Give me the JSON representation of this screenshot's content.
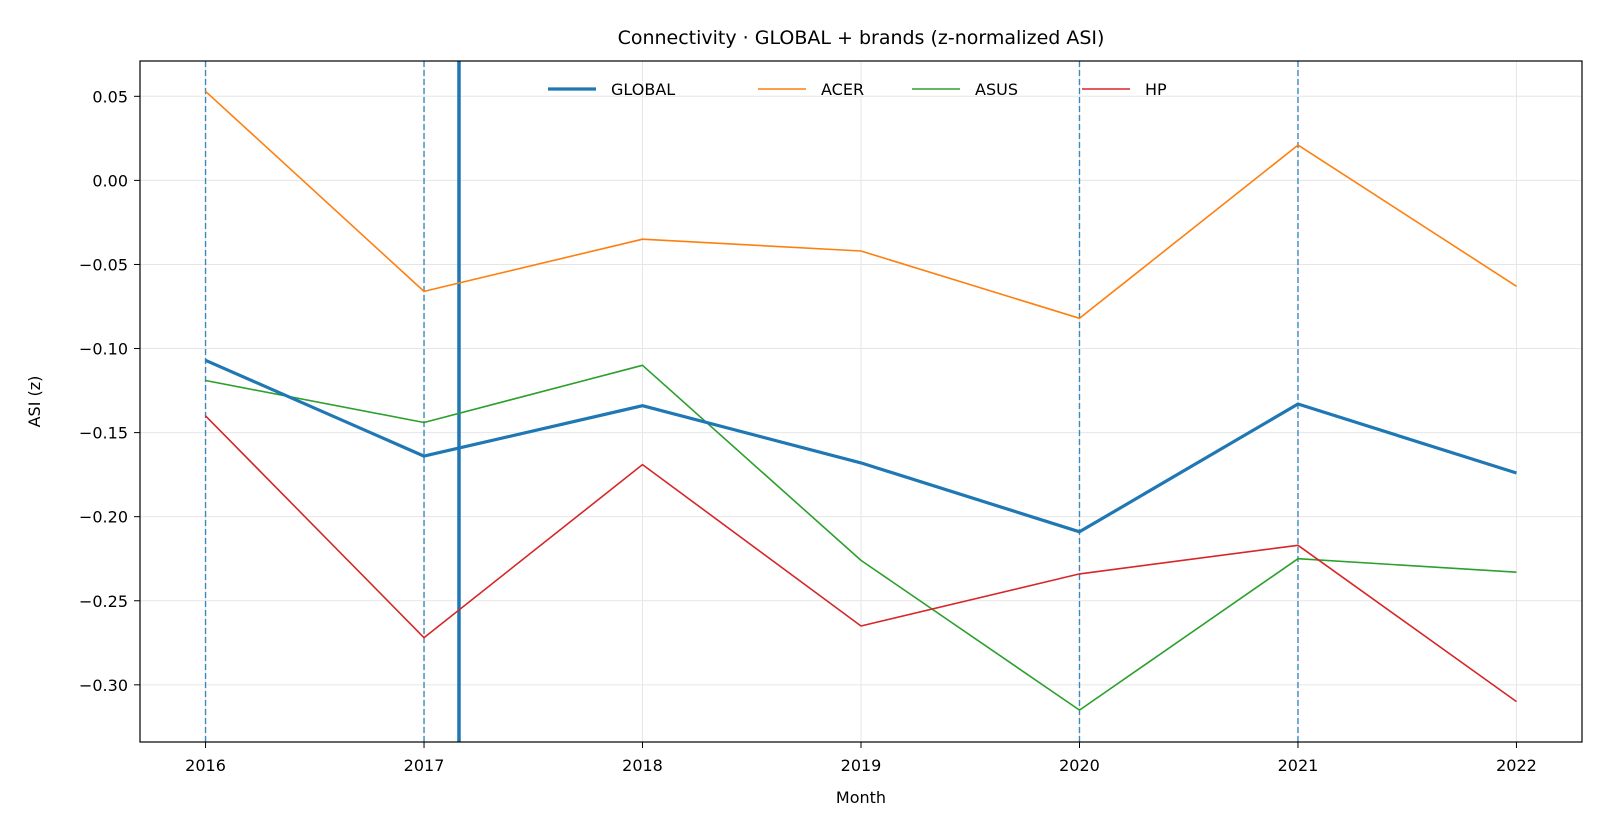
{
  "chart_data": {
    "type": "line",
    "title": "Connectivity · GLOBAL + brands (z-normalized ASI)",
    "xlabel": "Month",
    "ylabel": "ASI (z)",
    "x": [
      2016,
      2017,
      2018,
      2019,
      2020,
      2021,
      2022
    ],
    "x_tick_labels": [
      "2016",
      "2017",
      "2018",
      "2019",
      "2020",
      "2021",
      "2022"
    ],
    "xlim": [
      2015.7,
      2022.3
    ],
    "ylim": [
      -0.334,
      0.071
    ],
    "y_ticks": [
      0.05,
      0.0,
      -0.05,
      -0.1,
      -0.15,
      -0.2,
      -0.25,
      -0.3
    ],
    "y_tick_labels": [
      "0.05",
      "0.00",
      "−0.05",
      "−0.10",
      "−0.15",
      "−0.20",
      "−0.25",
      "−0.30"
    ],
    "grid": true,
    "legend_position": "top-center",
    "series": [
      {
        "name": "GLOBAL",
        "color": "#1f77b4",
        "emphasis": "thick",
        "values": [
          -0.107,
          -0.164,
          -0.134,
          -0.168,
          -0.209,
          -0.133,
          -0.174
        ]
      },
      {
        "name": "ACER",
        "color": "#ff7f0e",
        "values": [
          0.053,
          -0.066,
          -0.035,
          -0.042,
          -0.082,
          0.021,
          -0.063
        ]
      },
      {
        "name": "ASUS",
        "color": "#2ca02c",
        "values": [
          -0.119,
          -0.144,
          -0.11,
          -0.226,
          -0.315,
          -0.225,
          -0.233
        ]
      },
      {
        "name": "HP",
        "color": "#d62728",
        "values": [
          -0.14,
          -0.272,
          -0.169,
          -0.265,
          -0.234,
          -0.217,
          -0.31
        ]
      }
    ],
    "vertical_dashed_markers": [
      2016,
      2017,
      2020,
      2021
    ],
    "vertical_solid_marker": 2017.16,
    "marker_color": "#1f77b4"
  }
}
